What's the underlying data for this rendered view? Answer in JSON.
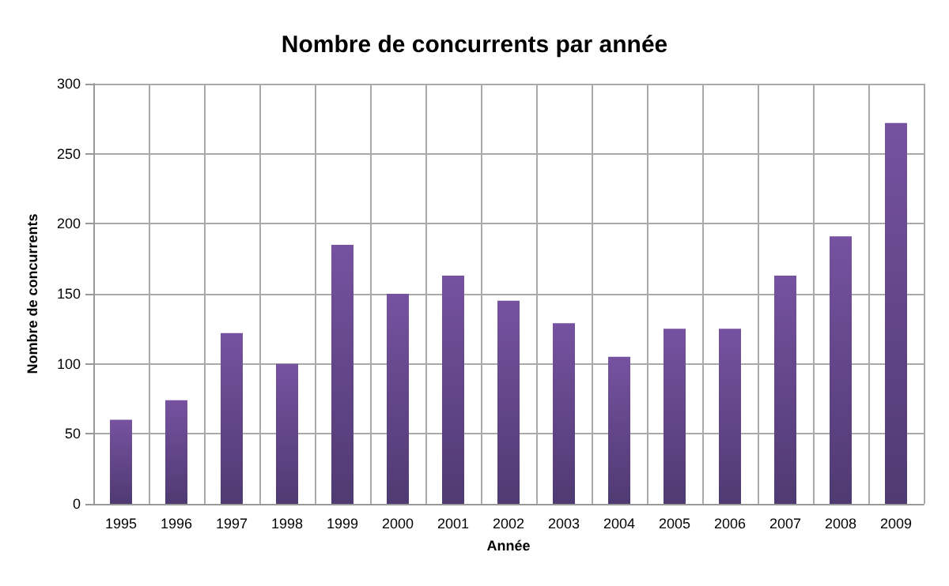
{
  "chart_data": {
    "type": "bar",
    "title": "Nombre de concurrents par année",
    "xlabel": "Année",
    "ylabel": "Nombre de concurrents",
    "categories": [
      "1995",
      "1996",
      "1997",
      "1998",
      "1999",
      "2000",
      "2001",
      "2002",
      "2003",
      "2004",
      "2005",
      "2006",
      "2007",
      "2008",
      "2009"
    ],
    "values": [
      60,
      74,
      122,
      100,
      185,
      150,
      163,
      145,
      129,
      105,
      125,
      125,
      163,
      191,
      272
    ],
    "color": "#7652a0",
    "ylim": [
      0,
      300
    ],
    "yticks": [
      0,
      50,
      100,
      150,
      200,
      250,
      300
    ],
    "grid": true
  }
}
